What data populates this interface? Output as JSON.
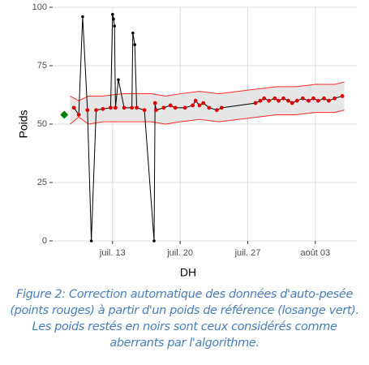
{
  "chart_data": {
    "type": "line",
    "x_label": "DH",
    "y_label": "Poids",
    "xlim": [
      6.8,
      38.3
    ],
    "xticks": [
      {
        "value": 13,
        "label": "juil. 13"
      },
      {
        "value": 20,
        "label": "juil. 20"
      },
      {
        "value": 27,
        "label": "juil. 27"
      },
      {
        "value": 34,
        "label": "août 03"
      }
    ],
    "ylim": [
      0,
      100
    ],
    "yticks": [
      0,
      25,
      50,
      75,
      100
    ],
    "grid": true,
    "band": {
      "color": "#ff2a2a",
      "fill": "#e6e6e6",
      "x": [
        8.6,
        9.5,
        10.5,
        12,
        14,
        17,
        18.5,
        20,
        22,
        24,
        26,
        28,
        30,
        32,
        34,
        36,
        37
      ],
      "lower": [
        50,
        53,
        50,
        51,
        51,
        51,
        50,
        51,
        52,
        51,
        52,
        53,
        54,
        54,
        55,
        55,
        56
      ],
      "upper": [
        62,
        60,
        62,
        62,
        63,
        63,
        62,
        63,
        64,
        63,
        64,
        65,
        66,
        66,
        67,
        67,
        68
      ]
    },
    "series": [
      {
        "color": "#000000",
        "x": [
          9.0,
          9.5,
          9.9,
          10.4,
          10.8,
          11.3,
          12.0,
          12.8,
          13.0,
          13.1,
          13.2,
          13.3,
          13.6,
          14.2,
          15.0,
          15.1,
          15.3,
          15.5,
          16.3,
          17.3,
          17.4,
          17.5,
          18.3,
          19.0,
          19.5,
          20.5,
          21.3,
          21.6,
          22.0,
          22.4,
          23.0,
          23.8,
          24.3,
          27.8,
          28.3,
          28.7,
          29.2,
          29.8,
          30.2,
          30.7,
          31.2,
          31.6,
          32.1,
          32.7,
          33.3,
          33.8,
          34.3,
          34.9,
          35.4,
          36.0,
          36.8
        ],
        "values": [
          57,
          54,
          96,
          56,
          0,
          56,
          56.5,
          57,
          97,
          95,
          92,
          57,
          69,
          57,
          57,
          89,
          84,
          57,
          56,
          0,
          59,
          56,
          57,
          58,
          57,
          57,
          58,
          60,
          58,
          59,
          57,
          56,
          57,
          59,
          60,
          61,
          60,
          61,
          60,
          61,
          60,
          59,
          60,
          61,
          60,
          61,
          60,
          61,
          60,
          61,
          62
        ]
      },
      {
        "color": "#e00000",
        "x": [
          9.0,
          9.5,
          10.4,
          11.3,
          12.0,
          12.8,
          13.3,
          14.2,
          15.0,
          15.5,
          16.3,
          17.4,
          17.5,
          18.3,
          19.0,
          19.5,
          20.5,
          21.3,
          21.6,
          22.0,
          22.4,
          23.0,
          23.8,
          24.3,
          27.8,
          28.3,
          28.7,
          29.2,
          29.8,
          30.2,
          30.7,
          31.2,
          31.6,
          32.1,
          32.7,
          33.3,
          33.8,
          34.3,
          34.9,
          35.4,
          36.0,
          36.8
        ],
        "values": [
          57,
          54,
          56,
          56,
          56.5,
          57,
          57,
          57,
          57,
          57,
          56,
          59,
          56,
          57,
          58,
          57,
          57,
          58,
          60,
          58,
          59,
          57,
          56,
          57,
          59,
          60,
          61,
          60,
          61,
          60,
          61,
          60,
          59,
          60,
          61,
          60,
          61,
          60,
          61,
          60,
          61,
          62
        ]
      }
    ],
    "reference": {
      "color": "#008000",
      "x": 8.0,
      "value": 54
    },
    "caption": "Figure 2: Correction automatique des données d'auto-pesée (points rouges) à partir d'un poids de référence (losange vert). Les poids restés en noirs sont ceux considérés comme aberrants par l'algorithme."
  }
}
